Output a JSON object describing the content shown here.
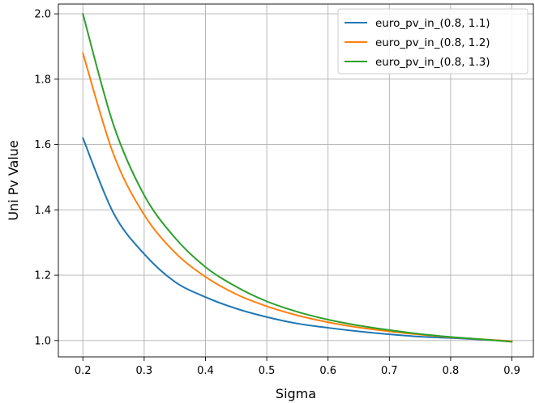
{
  "chart_data": {
    "type": "line",
    "title": "",
    "xlabel": "Sigma",
    "ylabel": "Uni Pv Value",
    "xlim": [
      0.16,
      0.935
    ],
    "ylim": [
      0.95,
      2.03
    ],
    "xticks": [
      0.2,
      0.3,
      0.4,
      0.5,
      0.6,
      0.7,
      0.8,
      0.9
    ],
    "xtick_labels": [
      "0.2",
      "0.3",
      "0.4",
      "0.5",
      "0.6",
      "0.7",
      "0.8",
      "0.9"
    ],
    "yticks": [
      1.0,
      1.2,
      1.4,
      1.6,
      1.8,
      2.0
    ],
    "ytick_labels": [
      "1.0",
      "1.2",
      "1.4",
      "1.6",
      "1.8",
      "2.0"
    ],
    "grid": true,
    "legend_position": "top-right",
    "x": [
      0.2,
      0.25,
      0.3,
      0.35,
      0.4,
      0.45,
      0.5,
      0.55,
      0.6,
      0.65,
      0.7,
      0.75,
      0.8,
      0.85,
      0.9
    ],
    "series": [
      {
        "name": "euro_pv_in_(0.8, 1.1)",
        "color": "#1f77b4",
        "values": [
          1.62,
          1.39,
          1.265,
          1.18,
          1.133,
          1.098,
          1.072,
          1.052,
          1.039,
          1.028,
          1.019,
          1.012,
          1.008,
          1.003,
          0.998
        ]
      },
      {
        "name": "euro_pv_in_(0.8, 1.2)",
        "color": "#ff7f0e",
        "values": [
          1.88,
          1.57,
          1.385,
          1.27,
          1.195,
          1.142,
          1.105,
          1.077,
          1.056,
          1.04,
          1.028,
          1.018,
          1.01,
          1.004,
          0.998
        ]
      },
      {
        "name": "euro_pv_in_(0.8, 1.3)",
        "color": "#2ca02c",
        "values": [
          2.0,
          1.66,
          1.445,
          1.315,
          1.225,
          1.165,
          1.12,
          1.088,
          1.064,
          1.046,
          1.032,
          1.02,
          1.011,
          1.004,
          0.996
        ]
      }
    ]
  }
}
